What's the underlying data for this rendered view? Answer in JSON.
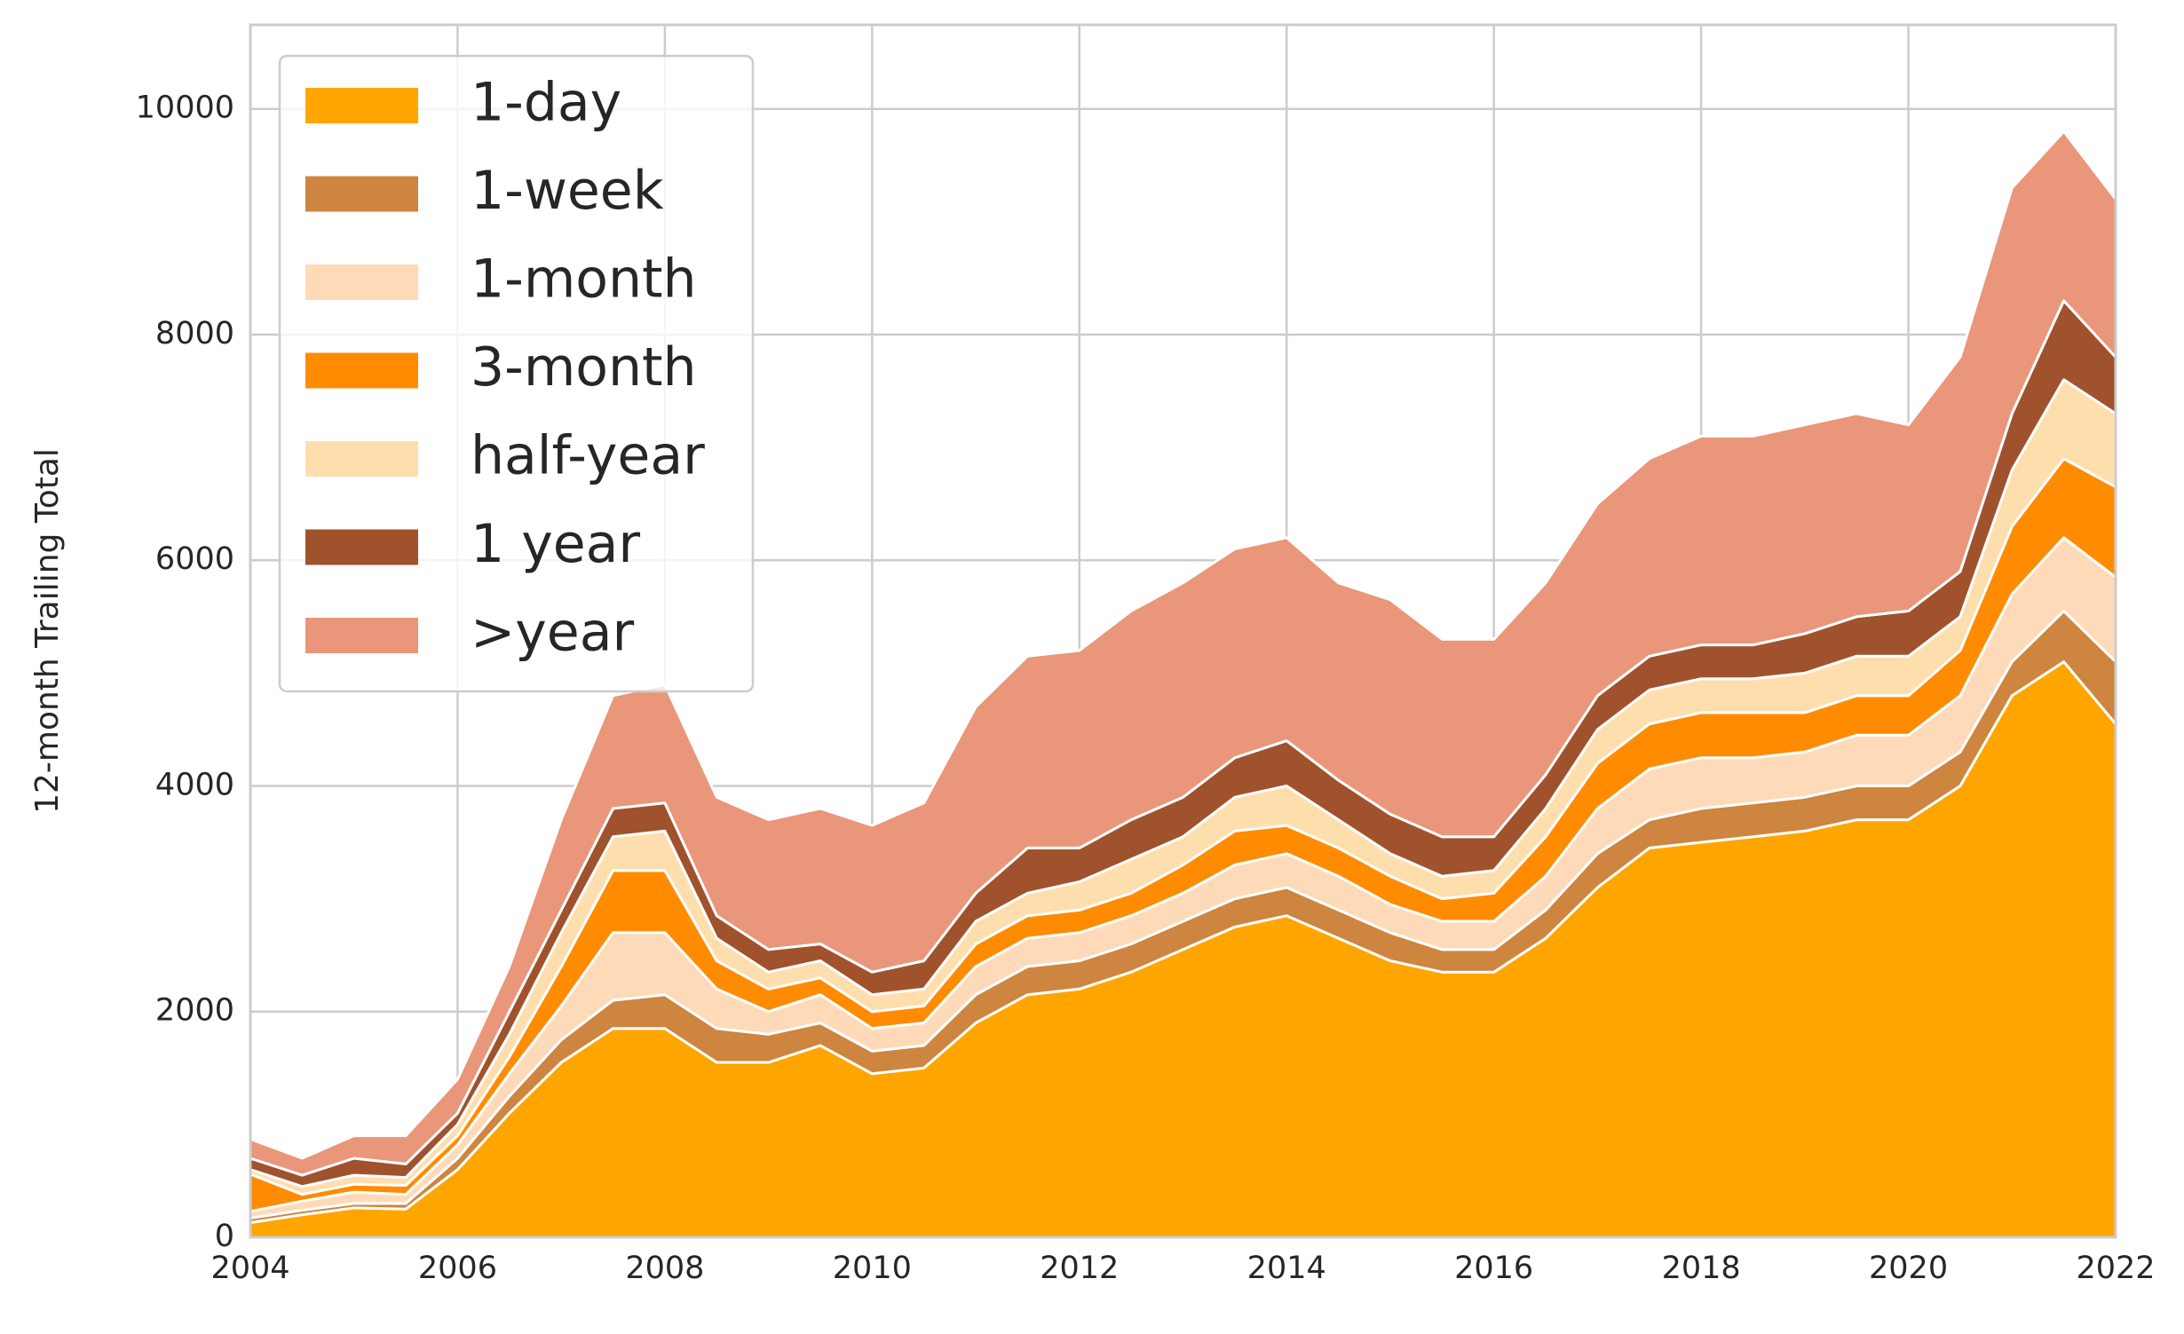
{
  "chart_data": {
    "type": "stacked_area",
    "y_label": "12-month Trailing Total",
    "x": [
      2004.0,
      2004.5,
      2005.0,
      2005.5,
      2006.0,
      2006.5,
      2007.0,
      2007.5,
      2008.0,
      2008.5,
      2009.0,
      2009.5,
      2010.0,
      2010.5,
      2011.0,
      2011.5,
      2012.0,
      2012.5,
      2013.0,
      2013.5,
      2014.0,
      2014.5,
      2015.0,
      2015.5,
      2016.0,
      2016.5,
      2017.0,
      2017.5,
      2018.0,
      2018.5,
      2019.0,
      2019.5,
      2020.0,
      2020.5,
      2021.0,
      2021.5,
      2022.0
    ],
    "series": [
      {
        "name": "1-day",
        "color": "#ffa500",
        "values": [
          130,
          200,
          260,
          250,
          600,
          1100,
          1550,
          1850,
          1850,
          1550,
          1550,
          1700,
          1450,
          1500,
          1900,
          2150,
          2200,
          2350,
          2550,
          2750,
          2850,
          2650,
          2450,
          2350,
          2350,
          2650,
          3100,
          3450,
          3500,
          3550,
          3600,
          3700,
          3700,
          4000,
          4800,
          5100,
          4550
        ]
      },
      {
        "name": "1-week",
        "color": "#cd853f",
        "values": [
          40,
          40,
          40,
          50,
          100,
          150,
          200,
          250,
          300,
          300,
          250,
          200,
          200,
          200,
          250,
          250,
          250,
          250,
          250,
          250,
          250,
          250,
          250,
          200,
          200,
          250,
          300,
          250,
          300,
          300,
          300,
          300,
          300,
          300,
          300,
          450,
          550
        ]
      },
      {
        "name": "1-month",
        "color": "#ffdab9",
        "values": [
          60,
          80,
          100,
          80,
          120,
          200,
          300,
          600,
          550,
          350,
          200,
          250,
          200,
          200,
          250,
          250,
          250,
          250,
          250,
          300,
          300,
          300,
          250,
          250,
          250,
          300,
          400,
          450,
          450,
          400,
          400,
          450,
          450,
          500,
          600,
          650,
          750
        ]
      },
      {
        "name": "3-month",
        "color": "#ff8c00",
        "values": [
          330,
          60,
          70,
          80,
          80,
          150,
          350,
          550,
          550,
          250,
          200,
          150,
          150,
          150,
          200,
          200,
          200,
          200,
          250,
          300,
          250,
          250,
          250,
          200,
          250,
          350,
          400,
          400,
          400,
          400,
          350,
          350,
          350,
          400,
          600,
          700,
          800
        ]
      },
      {
        "name": "half-year",
        "color": "#ffdead",
        "values": [
          40,
          70,
          80,
          70,
          100,
          200,
          300,
          300,
          350,
          200,
          150,
          150,
          150,
          150,
          200,
          200,
          250,
          300,
          250,
          300,
          350,
          250,
          200,
          200,
          200,
          250,
          300,
          300,
          300,
          300,
          350,
          350,
          350,
          300,
          500,
          700,
          650
        ]
      },
      {
        "name": "1 year",
        "color": "#a0522d",
        "values": [
          100,
          100,
          150,
          120,
          100,
          200,
          200,
          250,
          250,
          200,
          200,
          150,
          200,
          250,
          250,
          400,
          300,
          350,
          350,
          350,
          400,
          350,
          350,
          350,
          300,
          300,
          300,
          300,
          300,
          300,
          350,
          350,
          400,
          400,
          500,
          700,
          500
        ]
      },
      {
        "name": ">year",
        "color": "#e9967a",
        "values": [
          170,
          150,
          200,
          250,
          300,
          400,
          800,
          1000,
          1050,
          1050,
          1150,
          1200,
          1300,
          1400,
          1650,
          1700,
          1750,
          1850,
          1900,
          1850,
          1800,
          1750,
          1900,
          1750,
          1750,
          1700,
          1700,
          1750,
          1850,
          1850,
          1850,
          1800,
          1650,
          1900,
          2000,
          1500,
          1400
        ]
      }
    ],
    "xlim": [
      2004,
      2022
    ],
    "xticks": [
      2004,
      2006,
      2008,
      2010,
      2012,
      2014,
      2016,
      2018,
      2020,
      2022
    ],
    "ylim": [
      0,
      10745
    ],
    "yticks": [
      0,
      2000,
      4000,
      6000,
      8000,
      10000
    ],
    "grid": true,
    "legend": "upper left"
  }
}
